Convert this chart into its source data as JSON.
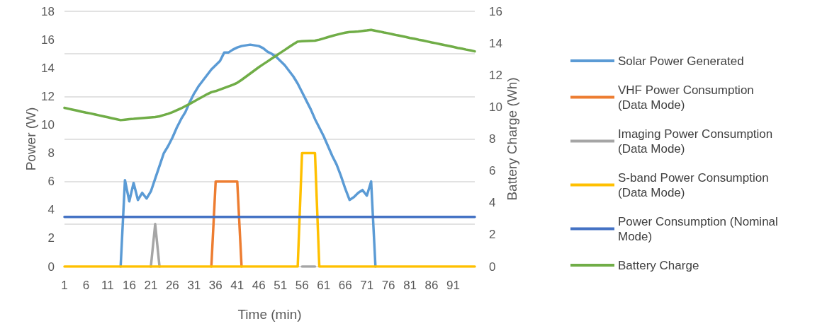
{
  "chart_data": {
    "type": "line",
    "categories": [
      "1",
      null,
      null,
      null,
      null,
      "6",
      null,
      null,
      null,
      null,
      "11",
      null,
      null,
      null,
      null,
      "16",
      null,
      null,
      null,
      null,
      "21",
      null,
      null,
      null,
      null,
      "26",
      null,
      null,
      null,
      null,
      "31",
      null,
      null,
      null,
      null,
      "36",
      null,
      null,
      null,
      null,
      "41",
      null,
      null,
      null,
      null,
      "46",
      null,
      null,
      null,
      null,
      "51",
      null,
      null,
      null,
      null,
      "56",
      null,
      null,
      null,
      null,
      "61",
      null,
      null,
      null,
      null,
      "66",
      null,
      null,
      null,
      null,
      "71",
      null,
      null,
      null,
      null,
      "76",
      null,
      null,
      null,
      null,
      "81",
      null,
      null,
      null,
      null,
      "86",
      null,
      null,
      null,
      null,
      "91",
      null,
      null,
      null,
      null,
      null
    ],
    "xlabel": "Time (min)",
    "ylabel": "Power (W)",
    "y2label": "Battery Charge (Wh)",
    "ylim": [
      0,
      18
    ],
    "yticks": [
      0,
      2,
      4,
      6,
      8,
      10,
      12,
      14,
      16,
      18
    ],
    "y2lim": [
      0,
      16
    ],
    "y2ticks": [
      0,
      2,
      4,
      6,
      8,
      10,
      12,
      14,
      16
    ],
    "grid": "y",
    "legend": "right",
    "marker": "none",
    "line_style": "solid",
    "series": [
      {
        "name": "Solar Power Generated",
        "color": "#5b9bd5",
        "values": [
          null,
          null,
          null,
          null,
          null,
          null,
          null,
          null,
          null,
          null,
          null,
          null,
          null,
          0,
          6.1,
          4.6,
          5.9,
          4.7,
          5.2,
          4.8,
          5.3,
          6.2,
          7.1,
          8.0,
          8.5,
          9.1,
          9.8,
          10.4,
          10.9,
          11.6,
          12.2,
          12.7,
          13.1,
          13.5,
          13.9,
          14.2,
          14.5,
          15.1,
          15.1,
          15.3,
          15.45,
          15.55,
          15.6,
          15.65,
          15.6,
          15.55,
          15.4,
          15.15,
          15.0,
          14.8,
          14.5,
          14.2,
          13.8,
          13.4,
          12.9,
          12.3,
          11.7,
          11.1,
          10.4,
          9.8,
          9.2,
          8.5,
          7.8,
          7.2,
          6.4,
          5.5,
          4.7,
          4.9,
          5.2,
          5.4,
          5.0,
          6.0,
          0,
          null,
          null,
          null,
          null,
          null,
          null,
          null,
          null,
          null,
          null,
          null,
          null,
          null,
          null,
          null,
          null,
          null,
          null,
          null,
          null,
          null,
          null,
          null
        ]
      },
      {
        "name": "VHF Power Consumption (Data Mode)",
        "color": "#ed7d31",
        "values": [
          null,
          null,
          null,
          null,
          null,
          null,
          null,
          null,
          null,
          null,
          null,
          null,
          null,
          null,
          null,
          null,
          null,
          null,
          null,
          null,
          null,
          null,
          null,
          null,
          null,
          null,
          null,
          null,
          null,
          null,
          null,
          null,
          null,
          null,
          0,
          6,
          6,
          6,
          6,
          6,
          6,
          0,
          null,
          null,
          null,
          null,
          null,
          null,
          null,
          null,
          null,
          null,
          null,
          null,
          null,
          null,
          null,
          null,
          null,
          null,
          null,
          null,
          null,
          null,
          null,
          null,
          null,
          null,
          null,
          null,
          null,
          null,
          null,
          null,
          null,
          null,
          null,
          null,
          null,
          null,
          null,
          null,
          null,
          null,
          null,
          null,
          null,
          null,
          null,
          null,
          null,
          null,
          null,
          null,
          null,
          null
        ]
      },
      {
        "name": "Imaging Power Consumption (Data Mode)",
        "color": "#a5a5a5",
        "values": [
          null,
          null,
          null,
          null,
          null,
          null,
          null,
          null,
          null,
          null,
          null,
          null,
          null,
          null,
          null,
          null,
          null,
          null,
          null,
          null,
          0,
          3,
          0,
          null,
          null,
          null,
          null,
          null,
          null,
          null,
          null,
          null,
          null,
          null,
          null,
          null,
          null,
          null,
          null,
          null,
          null,
          null,
          null,
          null,
          null,
          null,
          null,
          null,
          null,
          null,
          null,
          null,
          null,
          null,
          null,
          0,
          0,
          0,
          0,
          null,
          null,
          null,
          null,
          null,
          null,
          null,
          null,
          null,
          null,
          null,
          null,
          null,
          null,
          null,
          null,
          null,
          null,
          null,
          null,
          null,
          null,
          null,
          null,
          null,
          null,
          null,
          null,
          null,
          null,
          null,
          null,
          null,
          null,
          null,
          null,
          null
        ]
      },
      {
        "name": "S-band Power Consumption (Data Mode)",
        "color": "#ffc000",
        "values": [
          0,
          0,
          0,
          0,
          0,
          0,
          0,
          0,
          0,
          0,
          0,
          0,
          0,
          0,
          0,
          0,
          0,
          0,
          0,
          0,
          0,
          0,
          0,
          0,
          0,
          0,
          0,
          0,
          0,
          0,
          0,
          0,
          0,
          0,
          0,
          0,
          0,
          0,
          0,
          0,
          0,
          0,
          0,
          0,
          0,
          0,
          0,
          0,
          0,
          0,
          0,
          0,
          0,
          0,
          0,
          8,
          8,
          8,
          8,
          0,
          0,
          0,
          0,
          0,
          0,
          0,
          0,
          0,
          0,
          0,
          0,
          0,
          0,
          0,
          0,
          0,
          0,
          0,
          0,
          0,
          0,
          0,
          0,
          0,
          0,
          0,
          0,
          0,
          0,
          0,
          0,
          0,
          0,
          0,
          0,
          0
        ]
      },
      {
        "name": "Power Consumption (Nominal Mode)",
        "color": "#4472c4",
        "values": [
          3.5,
          3.5,
          3.5,
          3.5,
          3.5,
          3.5,
          3.5,
          3.5,
          3.5,
          3.5,
          3.5,
          3.5,
          3.5,
          3.5,
          3.5,
          3.5,
          3.5,
          3.5,
          3.5,
          3.5,
          3.5,
          3.5,
          3.5,
          3.5,
          3.5,
          3.5,
          3.5,
          3.5,
          3.5,
          3.5,
          3.5,
          3.5,
          3.5,
          3.5,
          3.5,
          3.5,
          3.5,
          3.5,
          3.5,
          3.5,
          3.5,
          3.5,
          3.5,
          3.5,
          3.5,
          3.5,
          3.5,
          3.5,
          3.5,
          3.5,
          3.5,
          3.5,
          3.5,
          3.5,
          3.5,
          3.5,
          3.5,
          3.5,
          3.5,
          3.5,
          3.5,
          3.5,
          3.5,
          3.5,
          3.5,
          3.5,
          3.5,
          3.5,
          3.5,
          3.5,
          3.5,
          3.5,
          3.5,
          3.5,
          3.5,
          3.5,
          3.5,
          3.5,
          3.5,
          3.5,
          3.5,
          3.5,
          3.5,
          3.5,
          3.5,
          3.5,
          3.5,
          3.5,
          3.5,
          3.5,
          3.5,
          3.5,
          3.5,
          3.5,
          3.5,
          3.5
        ]
      },
      {
        "name": "Battery Charge",
        "color": "#70ad47",
        "axis": "y2",
        "values": [
          9.95,
          9.89,
          9.83,
          9.77,
          9.71,
          9.65,
          9.6,
          9.54,
          9.48,
          9.42,
          9.36,
          9.3,
          9.24,
          9.18,
          9.21,
          9.24,
          9.26,
          9.29,
          9.31,
          9.33,
          9.35,
          9.37,
          9.42,
          9.5,
          9.58,
          9.68,
          9.8,
          9.92,
          10.06,
          10.2,
          10.35,
          10.5,
          10.65,
          10.8,
          10.93,
          11.0,
          11.1,
          11.2,
          11.3,
          11.4,
          11.52,
          11.7,
          11.9,
          12.1,
          12.3,
          12.5,
          12.68,
          12.86,
          13.04,
          13.22,
          13.4,
          13.58,
          13.76,
          13.94,
          14.1,
          14.13,
          14.14,
          14.15,
          14.16,
          14.22,
          14.3,
          14.38,
          14.46,
          14.53,
          14.6,
          14.66,
          14.7,
          14.72,
          14.74,
          14.77,
          14.8,
          14.84,
          14.78,
          14.73,
          14.67,
          14.62,
          14.56,
          14.5,
          14.45,
          14.39,
          14.33,
          14.28,
          14.22,
          14.17,
          14.11,
          14.05,
          14.0,
          13.94,
          13.88,
          13.83,
          13.77,
          13.71,
          13.66,
          13.6,
          13.55,
          13.49
        ]
      }
    ]
  }
}
